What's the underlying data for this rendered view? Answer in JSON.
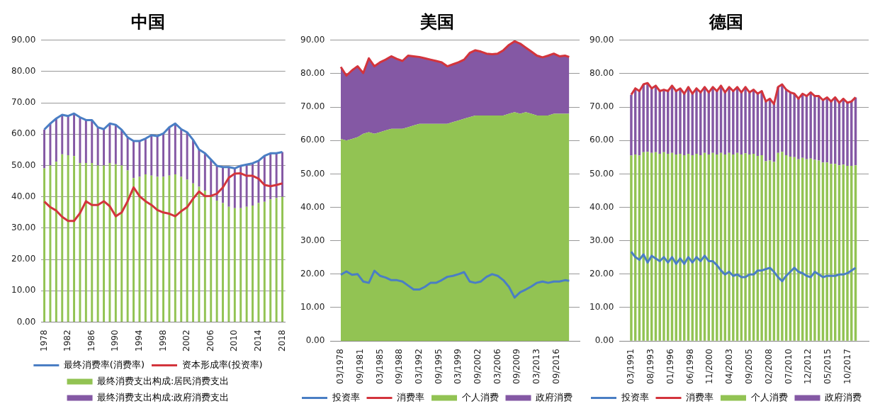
{
  "chart_data": [
    {
      "type": "bar",
      "title": "中国",
      "stacked": true,
      "grid": "y",
      "legend": "bottom",
      "categories": [
        "1978",
        null,
        null,
        null,
        "1982",
        null,
        null,
        null,
        "1986",
        null,
        null,
        null,
        "1990",
        null,
        null,
        null,
        "1994",
        null,
        null,
        null,
        "1998",
        null,
        null,
        null,
        "2002",
        null,
        null,
        null,
        "2006",
        null,
        null,
        null,
        "2010",
        null,
        null,
        null,
        "2014",
        null,
        null,
        null,
        "2018"
      ],
      "ylim": [
        0,
        90
      ],
      "yticks": [
        {
          "value": 0,
          "label": "0.00"
        },
        {
          "value": 10,
          "label": "10.00"
        },
        {
          "value": 20,
          "label": "20.00"
        },
        {
          "value": 30,
          "label": "30.00"
        },
        {
          "value": 40,
          "label": "40.00"
        },
        {
          "value": 50,
          "label": "50.00"
        },
        {
          "value": 60,
          "label": "60.00"
        },
        {
          "value": 70,
          "label": "70.00"
        },
        {
          "value": 80,
          "label": "80.00"
        },
        {
          "value": 90,
          "label": "90.00"
        }
      ],
      "series": [
        {
          "name": "最终消费支出构成:居民消费支出",
          "color": "#92c353",
          "values": [
            49.1,
            50,
            51.2,
            53.6,
            53.3,
            53,
            50.8,
            50.8,
            50.8,
            50,
            50,
            50.8,
            50.4,
            50,
            48.4,
            46,
            46.4,
            47.2,
            46.8,
            46.4,
            46.4,
            46.8,
            47.2,
            46.4,
            45.5,
            44.3,
            43.2,
            42,
            40.4,
            38.8,
            38,
            36.8,
            36.4,
            36.4,
            36.8,
            37.2,
            38,
            38.4,
            39.2,
            39.6,
            40
          ]
        },
        {
          "name": "最终消费支出构成:政府消费支出",
          "color": "#8458a4",
          "values": [
            12.4,
            13.4,
            13.8,
            12.6,
            12.5,
            13.6,
            14.6,
            13.7,
            13.7,
            12.2,
            11.6,
            12.6,
            12.6,
            11.4,
            10.6,
            11.8,
            11.4,
            11.4,
            12.9,
            13,
            13.8,
            15.4,
            16.2,
            15.2,
            15.1,
            13.9,
            11.9,
            11.9,
            11.5,
            11.1,
            11.5,
            12.7,
            12.7,
            13.5,
            13.5,
            13.5,
            13.5,
            14.7,
            14.7,
            14.3,
            14.3
          ]
        },
        {
          "name": "最终消费率(消费率)",
          "type": "line",
          "color": "#4a7ec4",
          "values": [
            61.5,
            63.4,
            65,
            66.2,
            65.8,
            66.6,
            65.4,
            64.5,
            64.5,
            62.2,
            61.6,
            63.4,
            63,
            61.4,
            59,
            57.8,
            57.8,
            58.6,
            59.7,
            59.4,
            60.2,
            62.2,
            63.4,
            61.6,
            60.6,
            58.2,
            55.1,
            53.9,
            51.9,
            49.9,
            49.5,
            49.5,
            49.1,
            49.9,
            50.3,
            50.7,
            51.5,
            53.1,
            53.9,
            53.9,
            54.3
          ]
        },
        {
          "name": "资本形成率(投资率)",
          "type": "line",
          "color": "#d3343c",
          "values": [
            38.5,
            36.7,
            35.6,
            33.6,
            32.3,
            32.3,
            34.8,
            38.6,
            37.4,
            37.4,
            38.6,
            37,
            33.8,
            35,
            38.6,
            43,
            40.2,
            38.6,
            37.4,
            35.8,
            35,
            34.6,
            33.8,
            35.4,
            36.7,
            39.4,
            41.7,
            40.2,
            40.3,
            41,
            43,
            46.1,
            47.4,
            47.5,
            46.7,
            46.7,
            45.8,
            43.8,
            43.4,
            43.8,
            44.3
          ]
        }
      ]
    },
    {
      "type": "area",
      "title": "美国",
      "stacked": true,
      "grid": "y",
      "legend": "bottom",
      "x": [
        "1978-03",
        "1979-03",
        "1980-03",
        "1981-03",
        "1982-03",
        "1983-03",
        "1984-03",
        "1985-03",
        "1986-03",
        "1987-03",
        "1988-03",
        "1989-03",
        "1990-03",
        "1991-03",
        "1992-03",
        "1993-03",
        "1994-03",
        "1995-03",
        "1996-03",
        "1997-03",
        "1998-03",
        "1999-03",
        "2000-03",
        "2001-03",
        "2002-03",
        "2003-03",
        "2004-03",
        "2005-03",
        "2006-03",
        "2007-03",
        "2008-03",
        "2009-03",
        "2010-03",
        "2011-03",
        "2012-03",
        "2013-03",
        "2014-03",
        "2015-03",
        "2016-03",
        "2017-03",
        "2018-03",
        "2018-12"
      ],
      "xlim": [
        "1978-03",
        "2018-12"
      ],
      "xticks": [
        {
          "value": "1978-03",
          "label": "03/1978"
        },
        {
          "value": "1981-09",
          "label": "09/1981"
        },
        {
          "value": "1985-03",
          "label": "03/1985"
        },
        {
          "value": "1988-09",
          "label": "09/1988"
        },
        {
          "value": "1992-03",
          "label": "03/1992"
        },
        {
          "value": "1995-09",
          "label": "09/1995"
        },
        {
          "value": "1999-03",
          "label": "03/1999"
        },
        {
          "value": "2002-09",
          "label": "09/2002"
        },
        {
          "value": "2006-03",
          "label": "03/2006"
        },
        {
          "value": "2009-09",
          "label": "09/2009"
        },
        {
          "value": "2013-03",
          "label": "03/2013"
        },
        {
          "value": "2016-09",
          "label": "09/2016"
        }
      ],
      "ylim": [
        0,
        90
      ],
      "yticks": [
        {
          "value": 0,
          "label": "0.00"
        },
        {
          "value": 10,
          "label": "10.00"
        },
        {
          "value": 20,
          "label": "20.00"
        },
        {
          "value": 30,
          "label": "30.00"
        },
        {
          "value": 40,
          "label": "40.00"
        },
        {
          "value": 50,
          "label": "50.00"
        },
        {
          "value": 60,
          "label": "60.00"
        },
        {
          "value": 70,
          "label": "70.00"
        },
        {
          "value": 80,
          "label": "80.00"
        },
        {
          "value": 90,
          "label": "90.00"
        }
      ],
      "series": [
        {
          "name": "个人消费",
          "color": "#92c353",
          "values": [
            60.5,
            60,
            60.5,
            61,
            62,
            62.5,
            62,
            62.5,
            63,
            63.5,
            63.5,
            63.5,
            64,
            64.5,
            65,
            65,
            65,
            65,
            65,
            65,
            65.5,
            66,
            66.5,
            67,
            67.5,
            67.5,
            67.5,
            67.5,
            67.5,
            67.5,
            68,
            68.5,
            68,
            68.5,
            68,
            67.5,
            67.5,
            67.5,
            68,
            68,
            68,
            68
          ]
        },
        {
          "name": "政府消费",
          "color": "#8458a4",
          "values": [
            21.5,
            19.4,
            20.5,
            21.2,
            18.2,
            22.1,
            20.2,
            20.9,
            21.2,
            21.7,
            20.9,
            20.3,
            21.4,
            20.7,
            20,
            19.6,
            19.2,
            18.8,
            18.4,
            17.2,
            17.3,
            17.4,
            17.7,
            19.2,
            19.5,
            19.1,
            18.5,
            18.3,
            18.5,
            19.5,
            20.6,
            21.2,
            21,
            19.3,
            18.6,
            17.9,
            17.4,
            17.9,
            18,
            17.2,
            17.4,
            17
          ]
        },
        {
          "name": "投资率",
          "type": "line",
          "color": "#4a7ec4",
          "values": [
            19.8,
            20.8,
            19.8,
            20,
            17.8,
            17.4,
            21,
            19.5,
            19,
            18.2,
            18.2,
            17.8,
            16.6,
            15.4,
            15.4,
            16.2,
            17.4,
            17.4,
            18.2,
            19.2,
            19.5,
            20,
            20.6,
            17.8,
            17.4,
            17.8,
            19.2,
            20,
            19.5,
            18.2,
            16.2,
            13,
            14.6,
            15.4,
            16.3,
            17.4,
            17.8,
            17.4,
            17.8,
            17.8,
            18.2,
            18
          ]
        },
        {
          "name": "消费率",
          "type": "line",
          "color": "#d3343c",
          "values": [
            82,
            79.4,
            81,
            82.2,
            80.2,
            84.6,
            82.2,
            83.4,
            84.2,
            85.2,
            84.4,
            83.8,
            85.4,
            85.2,
            85,
            84.6,
            84.2,
            83.8,
            83.4,
            82.2,
            82.8,
            83.4,
            84.2,
            86.2,
            87,
            86.6,
            86,
            85.8,
            86,
            87,
            88.6,
            89.7,
            89,
            87.8,
            86.6,
            85.4,
            84.9,
            85.4,
            86,
            85.2,
            85.4,
            85
          ]
        }
      ]
    },
    {
      "type": "bar",
      "title": "德国",
      "stacked": true,
      "grid": "y",
      "legend": "bottom",
      "x": [
        "1991-03",
        "1991-09",
        "1992-03",
        "1992-09",
        "1993-03",
        "1993-09",
        "1994-03",
        "1994-09",
        "1995-03",
        "1995-09",
        "1996-03",
        "1996-09",
        "1997-03",
        "1997-09",
        "1998-03",
        "1998-09",
        "1999-03",
        "1999-09",
        "2000-03",
        "2000-09",
        "2001-03",
        "2001-09",
        "2002-03",
        "2002-09",
        "2003-03",
        "2003-09",
        "2004-03",
        "2004-09",
        "2005-03",
        "2005-09",
        "2006-03",
        "2006-09",
        "2007-03",
        "2007-09",
        "2008-03",
        "2008-09",
        "2009-03",
        "2009-09",
        "2010-03",
        "2010-09",
        "2011-03",
        "2011-09",
        "2012-03",
        "2012-09",
        "2013-03",
        "2013-09",
        "2014-03",
        "2014-09",
        "2015-03",
        "2015-09",
        "2016-03",
        "2016-09",
        "2017-03",
        "2017-09",
        "2018-03",
        "2018-09"
      ],
      "xlim": [
        "1991-01",
        "2019-01"
      ],
      "xticks": [
        {
          "value": "1991-03",
          "label": "03/1991"
        },
        {
          "value": "1993-08",
          "label": "08/1993"
        },
        {
          "value": "1996-01",
          "label": "01/1996"
        },
        {
          "value": "1998-06",
          "label": "06/1998"
        },
        {
          "value": "2000-11",
          "label": "11/2000"
        },
        {
          "value": "2003-04",
          "label": "04/2003"
        },
        {
          "value": "2005-09",
          "label": "09/2005"
        },
        {
          "value": "2008-02",
          "label": "02/2008"
        },
        {
          "value": "2010-07",
          "label": "07/2010"
        },
        {
          "value": "2012-12",
          "label": "12/2012"
        },
        {
          "value": "2015-05",
          "label": "05/2015"
        },
        {
          "value": "2017-10",
          "label": "10/2017"
        }
      ],
      "ylim": [
        0,
        90
      ],
      "yticks": [
        {
          "value": 0,
          "label": "0.00"
        },
        {
          "value": 10,
          "label": "10.00"
        },
        {
          "value": 20,
          "label": "20.00"
        },
        {
          "value": 30,
          "label": "30.00"
        },
        {
          "value": 40,
          "label": "40.00"
        },
        {
          "value": 50,
          "label": "50.00"
        },
        {
          "value": 60,
          "label": "60.00"
        },
        {
          "value": 70,
          "label": "70.00"
        },
        {
          "value": 80,
          "label": "80.00"
        },
        {
          "value": 90,
          "label": "90.00"
        }
      ],
      "series": [
        {
          "name": "个人消费",
          "color": "#92c353",
          "values": [
            55.5,
            55.8,
            55.5,
            56.5,
            56.6,
            56.3,
            56.5,
            56,
            56.5,
            56,
            56.3,
            55.8,
            56,
            55.6,
            56,
            55.6,
            56,
            55.6,
            56.3,
            55.8,
            56.3,
            55.8,
            56.3,
            55.8,
            56.3,
            55.8,
            56.3,
            55.8,
            56.2,
            55.8,
            56,
            55.4,
            55.6,
            53.8,
            54,
            53.6,
            56.3,
            56.6,
            55.6,
            55.2,
            55,
            54.4,
            54.8,
            54.4,
            54.6,
            54.2,
            54,
            53.4,
            53.4,
            53,
            53,
            52.6,
            52.8,
            52.4,
            52.4,
            52.6
          ]
        },
        {
          "name": "政府消费",
          "color": "#8458a4",
          "values": [
            18.2,
            19.8,
            19.3,
            20.3,
            20.6,
            19.3,
            19.9,
            18.8,
            18.7,
            18.8,
            20.1,
            19,
            19.6,
            18.4,
            20,
            18.4,
            19.6,
            18.8,
            19.7,
            18.6,
            19.7,
            19,
            20.1,
            18.6,
            19.7,
            19,
            19.7,
            18.6,
            19.8,
            18.6,
            19.2,
            18.6,
            19.2,
            17.9,
            18.5,
            17.3,
            19.7,
            20.2,
            19.6,
            19.2,
            19,
            18.1,
            19.2,
            18.9,
            19.8,
            19.1,
            19.3,
            18.7,
            19.5,
            18.7,
            19.9,
            18.7,
            19.7,
            18.9,
            19.3,
            20.3
          ]
        },
        {
          "name": "投资率",
          "type": "line",
          "color": "#4a7ec4",
          "values": [
            26.7,
            25.1,
            24.3,
            25.9,
            23.5,
            25.5,
            24.7,
            23.9,
            25.1,
            23.5,
            25.1,
            23.1,
            24.7,
            23.1,
            25.1,
            23.5,
            25.1,
            23.9,
            25.5,
            23.9,
            23.9,
            22.7,
            21.1,
            19.9,
            20.7,
            19.5,
            19.9,
            19.1,
            19.1,
            19.9,
            19.9,
            21.1,
            21.1,
            21.5,
            21.9,
            20.7,
            19.1,
            17.9,
            19.5,
            20.7,
            21.9,
            20.7,
            20.3,
            19.5,
            19.1,
            20.7,
            19.9,
            19.1,
            19.5,
            19.5,
            19.5,
            19.9,
            19.9,
            20.3,
            21.1,
            21.9
          ]
        },
        {
          "name": "消费率",
          "type": "line",
          "color": "#d3343c",
          "values": [
            73.7,
            75.6,
            74.8,
            76.8,
            77.2,
            75.6,
            76.4,
            74.8,
            75.2,
            74.8,
            76.4,
            74.8,
            75.6,
            74,
            76,
            74,
            75.6,
            74.4,
            76,
            74.4,
            76,
            74.8,
            76.4,
            74.4,
            76,
            74.8,
            76,
            74.4,
            76,
            74.4,
            75.2,
            74,
            74.8,
            71.7,
            72.5,
            70.9,
            76,
            76.8,
            75.2,
            74.4,
            74,
            72.5,
            74,
            73.3,
            74.4,
            73.3,
            73.3,
            72.1,
            72.9,
            71.7,
            72.9,
            71.3,
            72.5,
            71.3,
            71.7,
            72.9
          ]
        }
      ]
    }
  ]
}
